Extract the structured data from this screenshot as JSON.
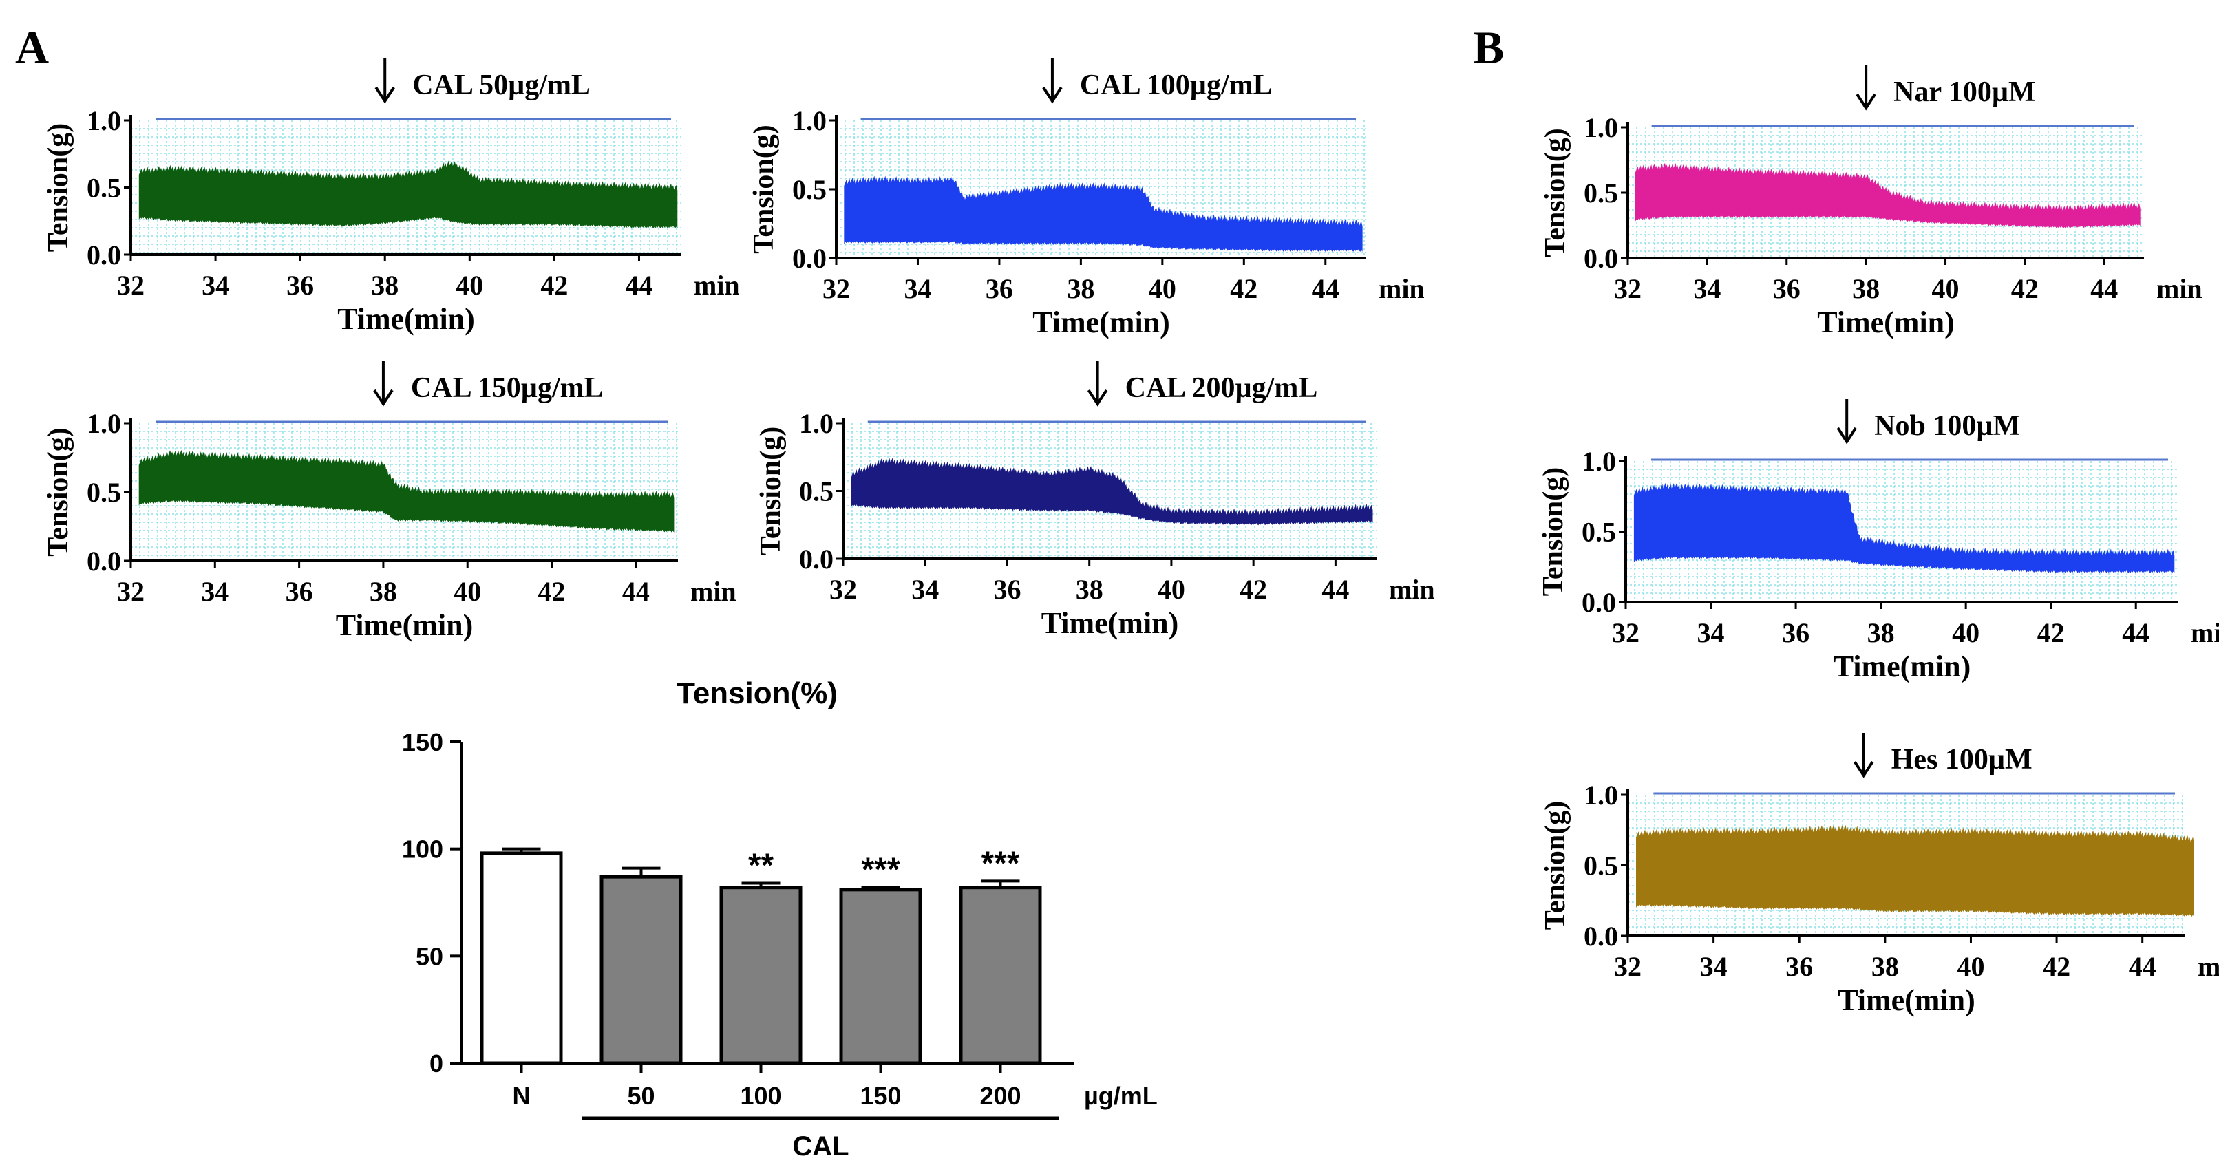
{
  "panels": {
    "a": "A",
    "b": "B"
  },
  "traces": [
    {
      "id": "cal50",
      "title": "CAL 50µg/mL",
      "ylabel": "Tension(g)",
      "xlabel": "Time(min)",
      "unit": "min",
      "x_range": [
        32,
        45
      ],
      "y_range": [
        0,
        1
      ],
      "x_ticks": [
        "32",
        "34",
        "36",
        "38",
        "40",
        "42",
        "44"
      ],
      "y_ticks": [
        "0.0",
        "0.5",
        "1.0"
      ],
      "addition_time": 38,
      "color": "#0d5c10",
      "signal_end": 44.9,
      "envelope": [
        [
          32.2,
          0.62,
          0.28
        ],
        [
          33,
          0.64,
          0.26
        ],
        [
          35,
          0.61,
          0.24
        ],
        [
          37,
          0.58,
          0.22
        ],
        [
          38,
          0.58,
          0.24
        ],
        [
          39.2,
          0.62,
          0.28
        ],
        [
          39.5,
          0.68,
          0.26
        ],
        [
          39.8,
          0.65,
          0.24
        ],
        [
          40.2,
          0.56,
          0.23
        ],
        [
          42,
          0.53,
          0.23
        ],
        [
          44,
          0.51,
          0.21
        ],
        [
          44.9,
          0.5,
          0.21
        ]
      ]
    },
    {
      "id": "cal100",
      "title": "CAL 100µg/mL",
      "ylabel": "Tension(g)",
      "xlabel": "Time(min)",
      "unit": "min",
      "x_range": [
        32,
        45
      ],
      "y_range": [
        0,
        1
      ],
      "x_ticks": [
        "32",
        "34",
        "36",
        "38",
        "40",
        "42",
        "44"
      ],
      "y_ticks": [
        "0.0",
        "0.5",
        "1.0"
      ],
      "addition_time": 37.3,
      "color": "#1c3ff0",
      "signal_end": 44.9,
      "envelope": [
        [
          32.2,
          0.55,
          0.12
        ],
        [
          33,
          0.57,
          0.12
        ],
        [
          34,
          0.56,
          0.12
        ],
        [
          34.9,
          0.57,
          0.12
        ],
        [
          35.1,
          0.44,
          0.11
        ],
        [
          36,
          0.47,
          0.11
        ],
        [
          37.5,
          0.52,
          0.11
        ],
        [
          38.5,
          0.52,
          0.11
        ],
        [
          39.5,
          0.5,
          0.1
        ],
        [
          39.8,
          0.35,
          0.08
        ],
        [
          41,
          0.29,
          0.07
        ],
        [
          43,
          0.27,
          0.06
        ],
        [
          44.9,
          0.25,
          0.06
        ]
      ]
    },
    {
      "id": "cal150",
      "title": "CAL 150µg/mL",
      "ylabel": "Tension(g)",
      "xlabel": "Time(min)",
      "unit": "min",
      "x_range": [
        32,
        45
      ],
      "y_range": [
        0,
        1
      ],
      "x_ticks": [
        "32",
        "34",
        "36",
        "38",
        "40",
        "42",
        "44"
      ],
      "y_ticks": [
        "0.0",
        "0.5",
        "1.0"
      ],
      "addition_time": 38,
      "color": "#0d5c10",
      "signal_end": 44.9,
      "envelope": [
        [
          32.2,
          0.72,
          0.42
        ],
        [
          33,
          0.78,
          0.44
        ],
        [
          35,
          0.75,
          0.42
        ],
        [
          37,
          0.72,
          0.38
        ],
        [
          38,
          0.7,
          0.36
        ],
        [
          38.3,
          0.55,
          0.3
        ],
        [
          39,
          0.5,
          0.3
        ],
        [
          41,
          0.5,
          0.28
        ],
        [
          43,
          0.48,
          0.24
        ],
        [
          44.9,
          0.48,
          0.22
        ]
      ]
    },
    {
      "id": "cal200",
      "title": "CAL 200µg/mL",
      "ylabel": "Tension(g)",
      "xlabel": "Time(min)",
      "unit": "min",
      "x_range": [
        32,
        45
      ],
      "y_range": [
        0,
        1
      ],
      "x_ticks": [
        "32",
        "34",
        "36",
        "38",
        "40",
        "42",
        "44"
      ],
      "y_ticks": [
        "0.0",
        "0.5",
        "1.0"
      ],
      "addition_time": 38.2,
      "color": "#1a1a80",
      "signal_end": 44.9,
      "envelope": [
        [
          32.2,
          0.62,
          0.4
        ],
        [
          33,
          0.72,
          0.38
        ],
        [
          35,
          0.68,
          0.38
        ],
        [
          37,
          0.62,
          0.36
        ],
        [
          38,
          0.66,
          0.36
        ],
        [
          38.7,
          0.6,
          0.34
        ],
        [
          39.3,
          0.4,
          0.3
        ],
        [
          40,
          0.35,
          0.27
        ],
        [
          42,
          0.34,
          0.26
        ],
        [
          44.9,
          0.38,
          0.28
        ]
      ]
    },
    {
      "id": "nar",
      "title": "Nar 100µM",
      "ylabel": "Tension(g)",
      "xlabel": "Time(min)",
      "unit": "min",
      "x_range": [
        32,
        45
      ],
      "y_range": [
        0,
        1
      ],
      "x_ticks": [
        "32",
        "34",
        "36",
        "38",
        "40",
        "42",
        "44"
      ],
      "y_ticks": [
        "0.0",
        "0.5",
        "1.0"
      ],
      "addition_time": 38,
      "color": "#e0209a",
      "signal_end": 44.9,
      "envelope": [
        [
          32.2,
          0.68,
          0.3
        ],
        [
          33,
          0.7,
          0.32
        ],
        [
          35,
          0.66,
          0.32
        ],
        [
          37,
          0.64,
          0.32
        ],
        [
          38,
          0.62,
          0.32
        ],
        [
          38.6,
          0.5,
          0.3
        ],
        [
          39.5,
          0.42,
          0.28
        ],
        [
          41,
          0.4,
          0.26
        ],
        [
          43,
          0.38,
          0.24
        ],
        [
          44.9,
          0.4,
          0.26
        ]
      ]
    },
    {
      "id": "nob",
      "title": "Nob 100µM",
      "ylabel": "Tension(g)",
      "xlabel": "Time(min)",
      "unit": "min",
      "x_range": [
        32,
        45
      ],
      "y_range": [
        0,
        1
      ],
      "x_ticks": [
        "32",
        "34",
        "36",
        "38",
        "40",
        "42",
        "44"
      ],
      "y_ticks": [
        "0.0",
        "0.5",
        "1.0"
      ],
      "addition_time": 37.2,
      "color": "#1c3ff0",
      "signal_end": 44.9,
      "envelope": [
        [
          32.2,
          0.78,
          0.3
        ],
        [
          33,
          0.82,
          0.32
        ],
        [
          35,
          0.8,
          0.32
        ],
        [
          37.2,
          0.78,
          0.3
        ],
        [
          37.5,
          0.45,
          0.28
        ],
        [
          38.5,
          0.4,
          0.26
        ],
        [
          40,
          0.36,
          0.24
        ],
        [
          42,
          0.35,
          0.22
        ],
        [
          44.9,
          0.35,
          0.22
        ]
      ]
    },
    {
      "id": "hes",
      "title": "Hes 100µM",
      "ylabel": "Tension(g)",
      "xlabel": "Time(min)",
      "unit": "min",
      "x_range": [
        32,
        45
      ],
      "y_range": [
        0,
        1
      ],
      "x_ticks": [
        "32",
        "34",
        "36",
        "38",
        "40",
        "42",
        "44"
      ],
      "y_ticks": [
        "0.0",
        "0.5",
        "1.0"
      ],
      "addition_time": 37.5,
      "color": "#a07810",
      "signal_end": 45.2,
      "envelope": [
        [
          32.2,
          0.72,
          0.22
        ],
        [
          33,
          0.74,
          0.22
        ],
        [
          35,
          0.74,
          0.2
        ],
        [
          37,
          0.76,
          0.2
        ],
        [
          38,
          0.73,
          0.18
        ],
        [
          40,
          0.74,
          0.18
        ],
        [
          42,
          0.72,
          0.16
        ],
        [
          44,
          0.72,
          0.16
        ],
        [
          45.2,
          0.68,
          0.15
        ]
      ]
    }
  ],
  "chart_data": {
    "type": "bar",
    "title": "Tension(%)",
    "categories": [
      "N",
      "50",
      "100",
      "150",
      "200"
    ],
    "values": [
      98,
      87,
      82,
      81,
      82
    ],
    "errors": [
      2,
      4,
      2,
      1,
      3
    ],
    "significance": [
      "",
      "",
      "**",
      "***",
      "***"
    ],
    "fill_colors": [
      "#ffffff",
      "#808080",
      "#808080",
      "#808080",
      "#808080"
    ],
    "y_ticks": [
      "0",
      "50",
      "100",
      "150"
    ],
    "ylim": [
      0,
      150
    ],
    "unit_label": "µg/mL",
    "group_label": "CAL",
    "group_start": 1
  }
}
